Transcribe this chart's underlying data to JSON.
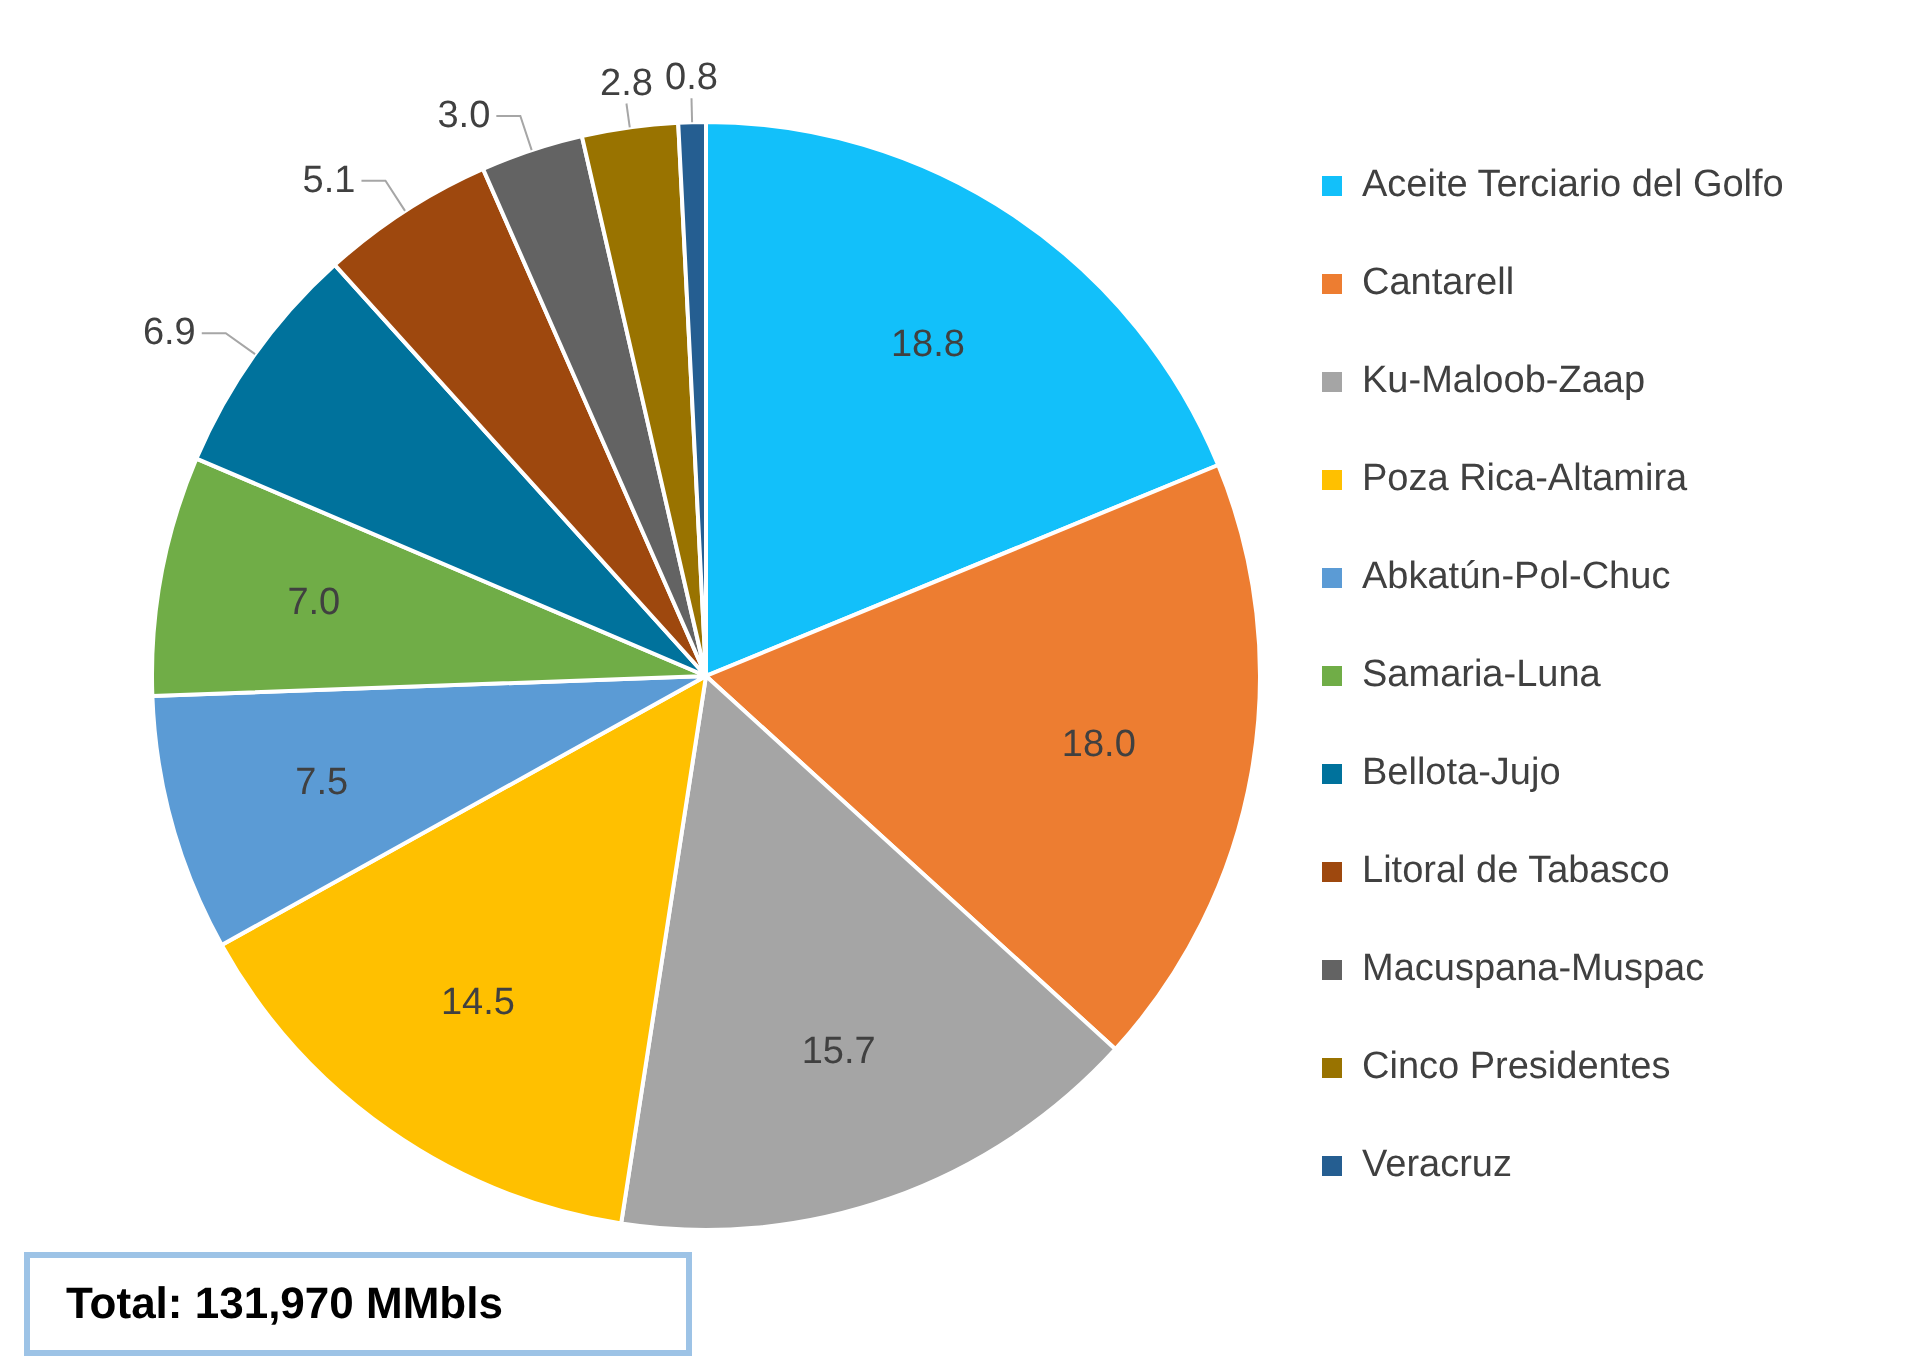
{
  "chart_data": {
    "type": "pie",
    "categories": [
      "Aceite Terciario del Golfo",
      "Cantarell",
      "Ku-Maloob-Zaap",
      "Poza Rica-Altamira",
      "Abkatún-Pol-Chuc",
      "Samaria-Luna",
      "Bellota-Jujo",
      "Litoral de Tabasco",
      "Macuspana-Muspac",
      "Cinco Presidentes",
      "Veracruz"
    ],
    "values": [
      18.8,
      18.0,
      15.7,
      14.5,
      7.5,
      7.0,
      6.9,
      5.1,
      3.0,
      2.8,
      0.8
    ],
    "colors": [
      "#12c0fa",
      "#ed7d31",
      "#a5a5a5",
      "#ffc000",
      "#5b9bd5",
      "#70ad47",
      "#00729c",
      "#9e480e",
      "#636363",
      "#997300",
      "#255e91"
    ],
    "value_labels": [
      "18.8",
      "18.0",
      "15.7",
      "14.5",
      "7.5",
      "7.0",
      "6.9",
      "5.1",
      "3.0",
      "2.8",
      "0.8"
    ],
    "legend": "right",
    "annotations": [
      "Total: 131,970 MMbls"
    ]
  }
}
